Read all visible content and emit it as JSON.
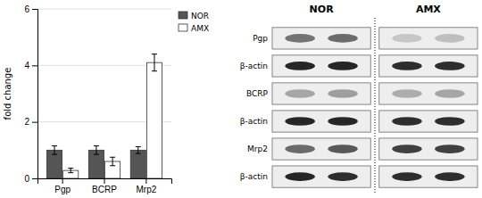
{
  "chart_data": [
    {
      "type": "bar",
      "categories": [
        "Pgp",
        "BCRP",
        "Mrp2"
      ],
      "series": [
        {
          "name": "NOR",
          "color": "#555555",
          "values": [
            1.0,
            1.0,
            1.0
          ],
          "errors": [
            0.15,
            0.15,
            0.12
          ]
        },
        {
          "name": "AMX",
          "color": "#ffffff",
          "values": [
            0.28,
            0.6,
            4.1
          ],
          "errors": [
            0.08,
            0.15,
            0.3
          ]
        }
      ],
      "y_label": "fold change",
      "ylim": [
        0,
        6
      ],
      "yticks": [
        0,
        2,
        4,
        6
      ],
      "grid": true,
      "legend": "upper right"
    },
    {
      "type": "blot",
      "categories": [
        "Pgp",
        "β-actin",
        "BCRP",
        "β-actin",
        "Mrp2",
        "β-actin"
      ],
      "series": [
        {
          "name": "NOR",
          "colors": [
            [
              "#737373",
              "#6b6b6b"
            ],
            [
              "#262626",
              "#262626"
            ],
            [
              "#a6a6a6",
              "#9e9e9e"
            ],
            [
              "#262626",
              "#262626"
            ],
            [
              "#6b6b6b",
              "#595959"
            ],
            [
              "#262626",
              "#2e2e2e"
            ]
          ]
        },
        {
          "name": "AMX",
          "colors": [
            [
              "#c7c7c7",
              "#bfbfbf"
            ],
            [
              "#2e2e2e",
              "#2e2e2e"
            ],
            [
              "#adadad",
              "#a6a6a6"
            ],
            [
              "#2e2e2e",
              "#2e2e2e"
            ],
            [
              "#404040",
              "#404040"
            ],
            [
              "#2e2e2e",
              "#2e2e2e"
            ]
          ]
        }
      ]
    }
  ]
}
